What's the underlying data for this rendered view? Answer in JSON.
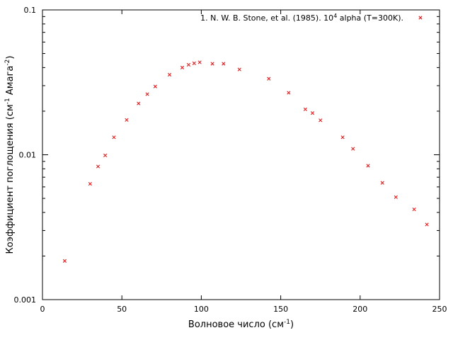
{
  "chart_data": {
    "type": "scatter",
    "title": "",
    "xlabel": "Волновое число (см",
    "xlabel_sup": "-1",
    "xlabel_tail": ")",
    "ylabel": "Коэффициент поглощения (см",
    "ylabel_sup1": "-1",
    "ylabel_mid": " Амага",
    "ylabel_sup2": "-2",
    "ylabel_tail": ")",
    "xlim": [
      0,
      250
    ],
    "ylim": [
      0.001,
      0.1
    ],
    "yscale": "log",
    "grid": false,
    "legend_position": "top-right",
    "x_ticks": [
      0,
      50,
      100,
      150,
      200,
      250
    ],
    "x_tick_labels": [
      "0",
      "50",
      "100",
      "150",
      "200",
      "250"
    ],
    "y_ticks": [
      0.001,
      0.01,
      0.1
    ],
    "y_tick_labels": [
      "0.001",
      "0.01",
      "0.1"
    ],
    "series": [
      {
        "name": "1. N. W. B. Stone, et al. (1985). 10",
        "name_sup": "4",
        "name_tail": " alpha (T=300K).",
        "color": "#e41a1c",
        "marker": "x",
        "points": [
          [
            14,
            0.00185
          ],
          [
            30,
            0.0063
          ],
          [
            35,
            0.0083
          ],
          [
            39.5,
            0.0099
          ],
          [
            45,
            0.0132
          ],
          [
            53,
            0.0174
          ],
          [
            60.5,
            0.0226
          ],
          [
            66,
            0.0262
          ],
          [
            71,
            0.0296
          ],
          [
            80,
            0.0357
          ],
          [
            88,
            0.04
          ],
          [
            92,
            0.0418
          ],
          [
            95.5,
            0.0428
          ],
          [
            99,
            0.0435
          ],
          [
            107,
            0.0425
          ],
          [
            114,
            0.0425
          ],
          [
            124,
            0.0388
          ],
          [
            142.5,
            0.0335
          ],
          [
            155,
            0.0268
          ],
          [
            165.5,
            0.0206
          ],
          [
            170,
            0.0194
          ],
          [
            175,
            0.0173
          ],
          [
            189,
            0.0132
          ],
          [
            195.5,
            0.011
          ],
          [
            205,
            0.0084
          ],
          [
            214,
            0.0064
          ],
          [
            222.5,
            0.0051
          ],
          [
            234,
            0.0042
          ],
          [
            242,
            0.0033
          ]
        ]
      }
    ]
  }
}
